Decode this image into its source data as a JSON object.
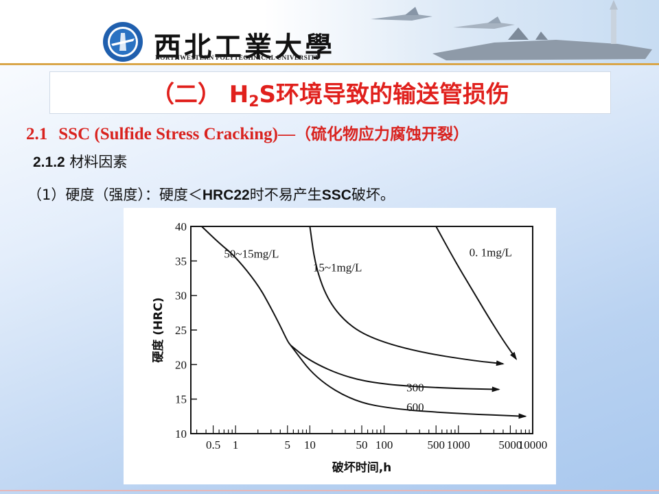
{
  "header": {
    "university_cn": "西北工業大學",
    "university_en": "NORTHWESTERN POLYTECHNICAL UNIVERSITY",
    "logo_icon": "university-seal-icon",
    "banner_icon": "jets-and-warship-banner"
  },
  "slide": {
    "title_pre": "（二） H",
    "title_sub": "2",
    "title_post": "S环境导致的输送管损伤",
    "section_num": "2.1",
    "section_en": "SSC (Sulfide Stress Cracking)—",
    "section_cn": "（硫化物应力腐蚀开裂）",
    "subsection_num": "2.1.2",
    "subsection_text": " 材料因素",
    "point_pre": "（1）硬度（强度）：硬度＜",
    "point_bold": "HRC22",
    "point_mid": "时不易产生",
    "point_bold2": "SSC",
    "point_post": "破坏。",
    "colors": {
      "title_red": "#e0201c",
      "section_red": "#d9231f"
    }
  },
  "chart_data": {
    "type": "line",
    "xscale": "log",
    "xlabel": "破坏时间,h",
    "ylabel": "硬度 (HRC)",
    "xlim": [
      0.25,
      10000
    ],
    "ylim": [
      10,
      40
    ],
    "x_ticks": [
      "0.5",
      "1",
      "5",
      "10",
      "50",
      "100",
      "500",
      "1000",
      "5000",
      "10000"
    ],
    "x_tick_values": [
      0.5,
      1,
      5,
      10,
      50,
      100,
      500,
      1000,
      5000,
      10000
    ],
    "y_ticks": [
      10,
      15,
      20,
      25,
      30,
      35,
      40
    ],
    "grid": false,
    "series": [
      {
        "name": "50~15mg/L",
        "label_at": [
          0.7,
          35.5
        ],
        "arrow": false,
        "points": [
          [
            0.35,
            40
          ],
          [
            0.6,
            37.6
          ],
          [
            1,
            35.6
          ],
          [
            2,
            31.6
          ],
          [
            3,
            28.2
          ],
          [
            4,
            25.6
          ],
          [
            5,
            23.4
          ],
          [
            5.5,
            22.8
          ]
        ]
      },
      {
        "name": "15~1mg/L",
        "label_at": [
          11,
          33.5
        ],
        "arrow": true,
        "points": [
          [
            10,
            40
          ],
          [
            12,
            34
          ],
          [
            18,
            29
          ],
          [
            35,
            25.5
          ],
          [
            80,
            23.5
          ],
          [
            300,
            21.8
          ],
          [
            1500,
            20.6
          ],
          [
            4000,
            20.1
          ]
        ]
      },
      {
        "name": "0. 1mg/L",
        "label_at": [
          1400,
          35.7
        ],
        "arrow": true,
        "points": [
          [
            500,
            40
          ],
          [
            900,
            35
          ],
          [
            1500,
            31
          ],
          [
            2500,
            27
          ],
          [
            4000,
            23.5
          ],
          [
            6000,
            20.8
          ]
        ]
      },
      {
        "name": "300",
        "label_at": [
          200,
          16.1
        ],
        "arrow": true,
        "points": [
          [
            5.5,
            22.8
          ],
          [
            10,
            20.5
          ],
          [
            30,
            18.2
          ],
          [
            100,
            17.1
          ],
          [
            600,
            16.6
          ],
          [
            3500,
            16.4
          ]
        ]
      },
      {
        "name": "600",
        "label_at": [
          200,
          13.3
        ],
        "arrow": true,
        "points": [
          [
            5.5,
            22.8
          ],
          [
            12,
            18
          ],
          [
            40,
            14.6
          ],
          [
            150,
            13.5
          ],
          [
            1000,
            12.9
          ],
          [
            8000,
            12.5
          ]
        ]
      }
    ]
  }
}
